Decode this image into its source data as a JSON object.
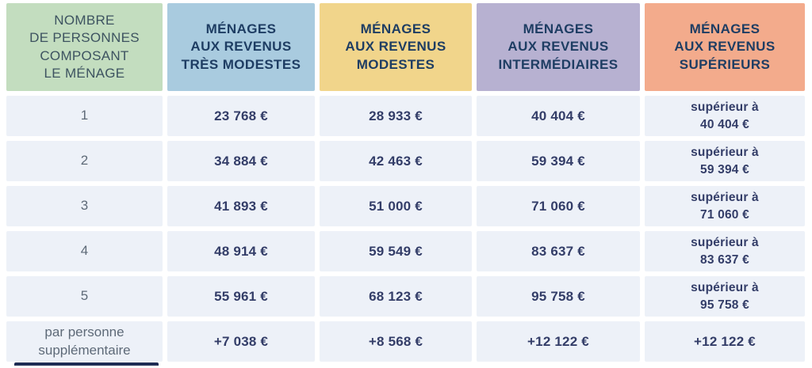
{
  "table": {
    "header": {
      "household": "NOMBRE\nDE PERSONNES\nCOMPOSANT\nLE MÉNAGE",
      "very_modest": "MÉNAGES\nAUX REVENUS\nTRÈS MODESTES",
      "modest": "MÉNAGES\nAUX REVENUS\nMODESTES",
      "intermediate": "MÉNAGES\nAUX REVENUS\nINTERMÉDIAIRES",
      "superior": "MÉNAGES\nAUX REVENUS\nSUPÉRIEURS"
    },
    "rows": [
      {
        "label": "1",
        "very_modest": "23 768 €",
        "modest": "28 933 €",
        "intermediate": "40 404 €",
        "superior": "supérieur à\n40 404 €"
      },
      {
        "label": "2",
        "very_modest": "34 884 €",
        "modest": "42 463 €",
        "intermediate": "59 394 €",
        "superior": "supérieur à\n59 394 €"
      },
      {
        "label": "3",
        "very_modest": "41 893 €",
        "modest": "51 000 €",
        "intermediate": "71 060 €",
        "superior": "supérieur à\n71 060 €"
      },
      {
        "label": "4",
        "very_modest": "48 914 €",
        "modest": "59 549 €",
        "intermediate": "83 637 €",
        "superior": "supérieur à\n83 637 €"
      },
      {
        "label": "5",
        "very_modest": "55 961 €",
        "modest": "68 123 €",
        "intermediate": "95 758 €",
        "superior": "supérieur à\n95 758 €"
      },
      {
        "label": "par personne\nsupplémentaire",
        "very_modest": "+7 038 €",
        "modest": "+8 568 €",
        "intermediate": "+12 122 €",
        "superior": "+12 122 €"
      }
    ]
  },
  "chart_data": {
    "type": "table",
    "title": "",
    "columns": [
      "NOMBRE DE PERSONNES COMPOSANT LE MÉNAGE",
      "MÉNAGES AUX REVENUS TRÈS MODESTES",
      "MÉNAGES AUX REVENUS MODESTES",
      "MÉNAGES AUX REVENUS INTERMÉDIAIRES",
      "MÉNAGES AUX REVENUS SUPÉRIEURS"
    ],
    "rows": [
      [
        "1",
        "23 768 €",
        "28 933 €",
        "40 404 €",
        "supérieur à 40 404 €"
      ],
      [
        "2",
        "34 884 €",
        "42 463 €",
        "59 394 €",
        "supérieur à 59 394 €"
      ],
      [
        "3",
        "41 893 €",
        "51 000 €",
        "71 060 €",
        "supérieur à 71 060 €"
      ],
      [
        "4",
        "48 914 €",
        "59 549 €",
        "83 637 €",
        "supérieur à 83 637 €"
      ],
      [
        "5",
        "55 961 €",
        "68 123 €",
        "95 758 €",
        "supérieur à 95 758 €"
      ],
      [
        "par personne supplémentaire",
        "+7 038 €",
        "+8 568 €",
        "+12 122 €",
        "+12 122 €"
      ]
    ]
  },
  "colors": {
    "header_household_bg": "#c3ddbf",
    "header_very_modest_bg": "#a9cbdf",
    "header_modest_bg": "#f1d58b",
    "header_intermediate_bg": "#b7b1d1",
    "header_superior_bg": "#f3ab8c",
    "header_household_text": "#3d5360",
    "header_text": "#1e3d63",
    "row_bg": "#edf1f8",
    "amount_text": "#333d68",
    "label_text": "#5e6a78",
    "footer_strip": "#1f2d55"
  }
}
